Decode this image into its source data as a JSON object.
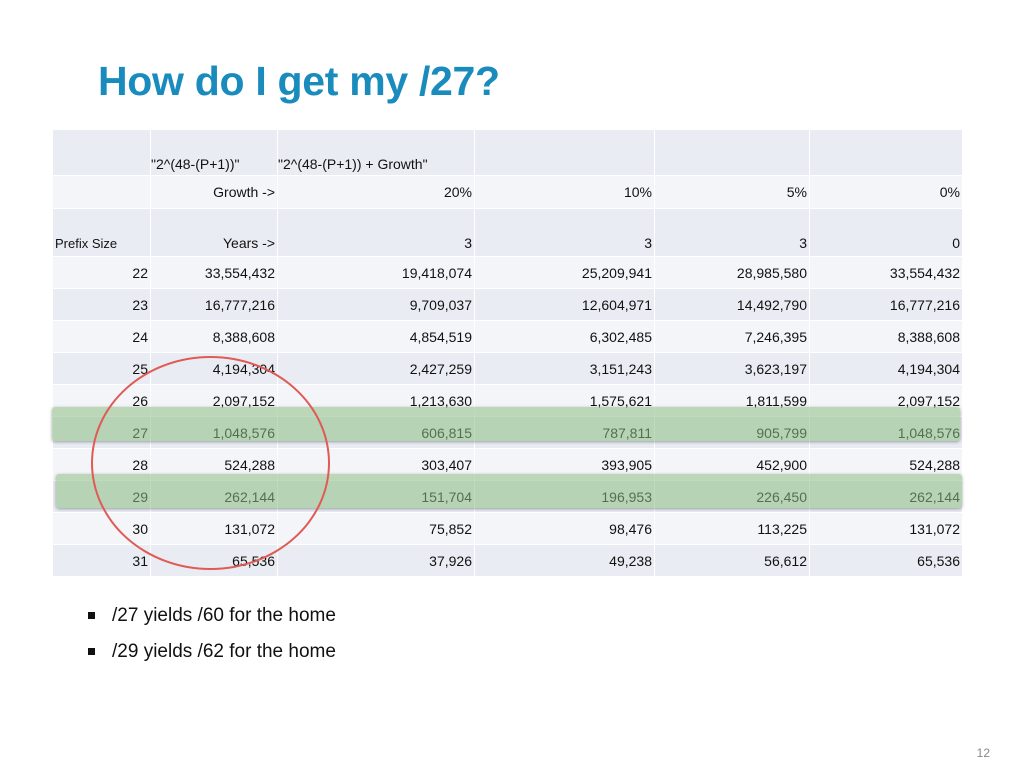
{
  "slide": {
    "title": "How do I get my /27?",
    "page_number": "12"
  },
  "table": {
    "header1": [
      "",
      "\"2^(48-(P+1))\"",
      "\"2^(48-(P+1)) + Growth\"",
      "",
      "",
      ""
    ],
    "header2": [
      "",
      "Growth ->",
      "20%",
      "10%",
      "5%",
      "0%"
    ],
    "header3": [
      "Prefix Size",
      "Years ->",
      "3",
      "3",
      "3",
      "0"
    ],
    "rows": [
      [
        "22",
        "33,554,432",
        "19,418,074",
        "25,209,941",
        "28,985,580",
        "33,554,432"
      ],
      [
        "23",
        "16,777,216",
        "9,709,037",
        "12,604,971",
        "14,492,790",
        "16,777,216"
      ],
      [
        "24",
        "8,388,608",
        "4,854,519",
        "6,302,485",
        "7,246,395",
        "8,388,608"
      ],
      [
        "25",
        "4,194,304",
        "2,427,259",
        "3,151,243",
        "3,623,197",
        "4,194,304"
      ],
      [
        "26",
        "2,097,152",
        "1,213,630",
        "1,575,621",
        "1,811,599",
        "2,097,152"
      ],
      [
        "27",
        "1,048,576",
        "606,815",
        "787,811",
        "905,799",
        "1,048,576"
      ],
      [
        "28",
        "524,288",
        "303,407",
        "393,905",
        "452,900",
        "524,288"
      ],
      [
        "29",
        "262,144",
        "151,704",
        "196,953",
        "226,450",
        "262,144"
      ],
      [
        "30",
        "131,072",
        "75,852",
        "98,476",
        "113,225",
        "131,072"
      ],
      [
        "31",
        "65,536",
        "37,926",
        "49,238",
        "56,612",
        "65,536"
      ]
    ],
    "highlighted_rows": [
      "27",
      "29"
    ]
  },
  "bullets": [
    "/27 yields /60 for the home",
    "/29 yields /62 for the home"
  ],
  "colors": {
    "title": "#1a8bbd",
    "row_highlight": "#a9cf9f",
    "circle": "#e05a56"
  }
}
